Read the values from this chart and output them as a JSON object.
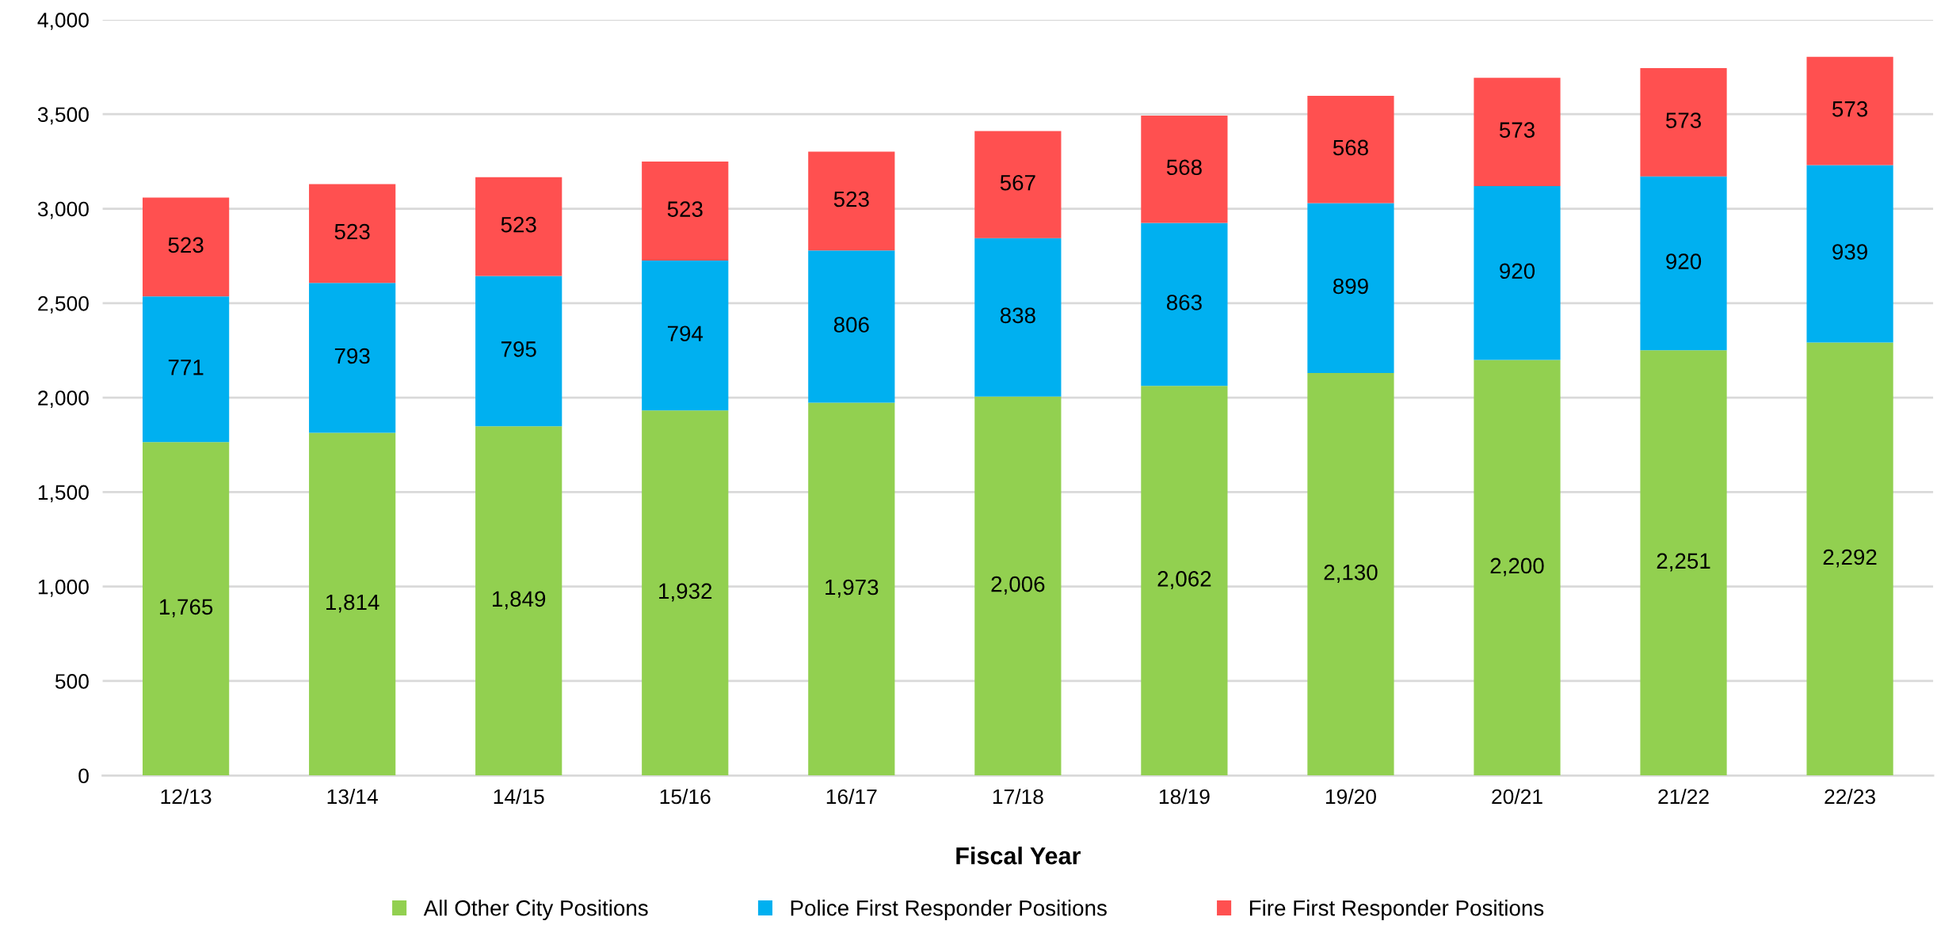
{
  "chart_data": {
    "type": "bar",
    "stacked": true,
    "xlabel": "Fiscal Year",
    "categories": [
      "12/13",
      "13/14",
      "14/15",
      "15/16",
      "16/17",
      "17/18",
      "18/19",
      "19/20",
      "20/21",
      "21/22",
      "22/23"
    ],
    "series": [
      {
        "name": "All Other City Positions",
        "color": "#92d050",
        "values": [
          1765,
          1814,
          1849,
          1932,
          1973,
          2006,
          2062,
          2130,
          2200,
          2251,
          2292
        ],
        "value_labels": [
          "1,765",
          "1,814",
          "1,849",
          "1,932",
          "1,973",
          "2,006",
          "2,062",
          "2,130",
          "2,200",
          "2,251",
          "2,292"
        ]
      },
      {
        "name": "Police First Responder Positions",
        "color": "#00b0f0",
        "values": [
          771,
          793,
          795,
          794,
          806,
          838,
          863,
          899,
          920,
          920,
          939
        ],
        "value_labels": [
          "771",
          "793",
          "795",
          "794",
          "806",
          "838",
          "863",
          "899",
          "920",
          "920",
          "939"
        ]
      },
      {
        "name": "Fire First Responder Positions",
        "color": "#ff5050",
        "values": [
          523,
          523,
          523,
          523,
          523,
          567,
          568,
          568,
          573,
          573,
          573
        ],
        "value_labels": [
          "523",
          "523",
          "523",
          "523",
          "523",
          "567",
          "568",
          "568",
          "573",
          "573",
          "573"
        ]
      }
    ],
    "ylim": [
      0,
      4000
    ],
    "yticks": [
      {
        "value": 0,
        "label": "0"
      },
      {
        "value": 500,
        "label": "500"
      },
      {
        "value": 1000,
        "label": "1,000"
      },
      {
        "value": 1500,
        "label": "1,500"
      },
      {
        "value": 2000,
        "label": "2,000"
      },
      {
        "value": 2500,
        "label": "2,500"
      },
      {
        "value": 3000,
        "label": "3,000"
      },
      {
        "value": 3500,
        "label": "3,500"
      },
      {
        "value": 4000,
        "label": "4,000"
      }
    ],
    "grid": "y",
    "legend": "bottom"
  }
}
